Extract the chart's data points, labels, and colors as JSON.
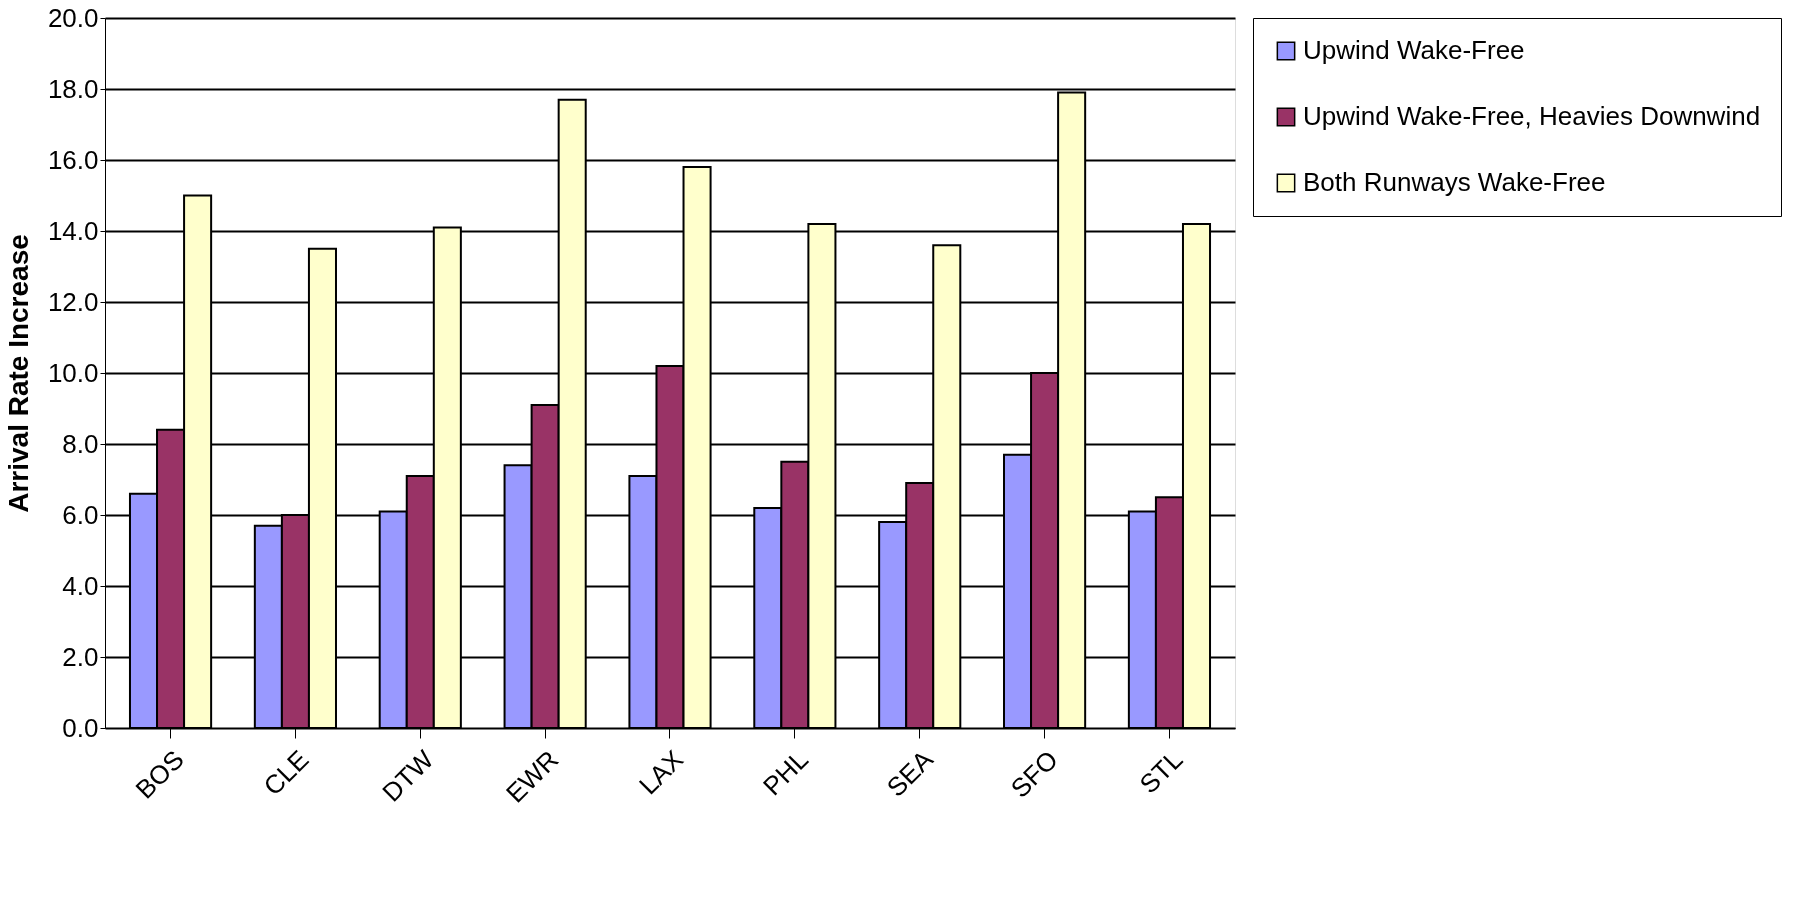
{
  "chart_data": {
    "type": "bar",
    "ylabel": "Arrival Rate Increase",
    "categories": [
      "BOS",
      "CLE",
      "DTW",
      "EWR",
      "LAX",
      "PHL",
      "SEA",
      "SFO",
      "STL"
    ],
    "series": [
      {
        "name": "Upwind Wake-Free",
        "color": "#9999ff",
        "values": [
          6.6,
          5.7,
          6.1,
          7.4,
          7.1,
          6.2,
          5.8,
          7.7,
          6.1
        ]
      },
      {
        "name": "Upwind Wake-Free, Heavies Downwind",
        "color": "#993366",
        "values": [
          8.4,
          6.0,
          7.1,
          9.1,
          10.2,
          7.5,
          6.9,
          10.0,
          6.5
        ]
      },
      {
        "name": "Both Runways Wake-Free",
        "color": "#ffffcc",
        "values": [
          15.0,
          13.5,
          14.1,
          17.7,
          15.8,
          14.2,
          13.6,
          17.9,
          14.2
        ]
      }
    ],
    "ylim": [
      0,
      20
    ],
    "yticks": [
      {
        "value": 0,
        "label": "0.0"
      },
      {
        "value": 2,
        "label": "2.0"
      },
      {
        "value": 4,
        "label": "4.0"
      },
      {
        "value": 6,
        "label": "6.0"
      },
      {
        "value": 8,
        "label": "8.0"
      },
      {
        "value": 10,
        "label": "10.0"
      },
      {
        "value": 12,
        "label": "12.0"
      },
      {
        "value": 14,
        "label": "14.0"
      },
      {
        "value": 16,
        "label": "16.0"
      },
      {
        "value": 18,
        "label": "18.0"
      },
      {
        "value": 20,
        "label": "20.0"
      }
    ],
    "grid": "y",
    "legend": "right"
  }
}
